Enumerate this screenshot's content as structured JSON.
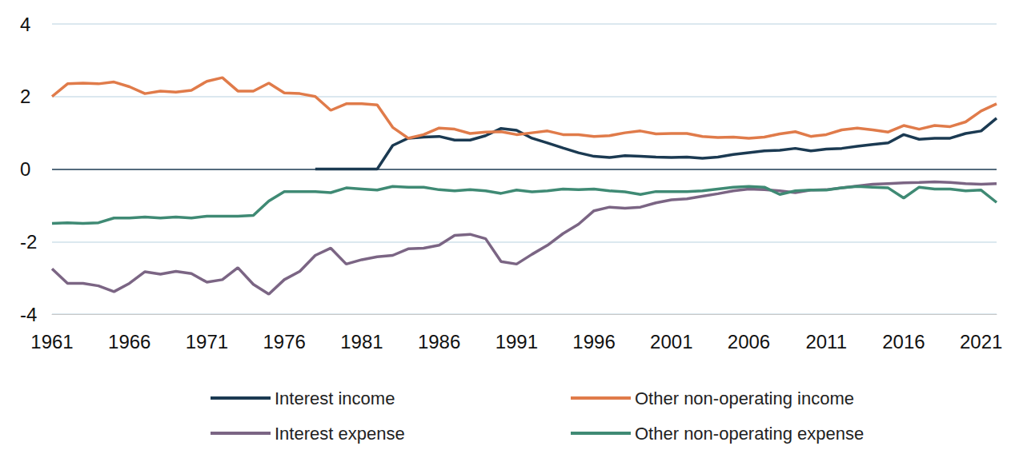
{
  "chart_data": {
    "type": "line",
    "x": [
      1961,
      1962,
      1963,
      1964,
      1965,
      1966,
      1967,
      1968,
      1969,
      1970,
      1971,
      1972,
      1973,
      1974,
      1975,
      1976,
      1977,
      1978,
      1979,
      1980,
      1981,
      1982,
      1983,
      1984,
      1985,
      1986,
      1987,
      1988,
      1989,
      1990,
      1991,
      1992,
      1993,
      1994,
      1995,
      1996,
      1997,
      1998,
      1999,
      2000,
      2001,
      2002,
      2003,
      2004,
      2005,
      2006,
      2007,
      2008,
      2009,
      2010,
      2011,
      2012,
      2013,
      2014,
      2015,
      2016,
      2017,
      2018,
      2019,
      2020,
      2021,
      2022
    ],
    "xlim": [
      1961,
      2022
    ],
    "xticks": [
      1961,
      1966,
      1971,
      1976,
      1981,
      1986,
      1991,
      1996,
      2001,
      2006,
      2011,
      2016,
      2021
    ],
    "ylim": [
      -4,
      4
    ],
    "yticks": [
      -4,
      -2,
      0,
      2,
      4
    ],
    "grid": true,
    "legend": "bottom",
    "series": [
      {
        "name": "Interest income",
        "color": "#1b3a52",
        "values": [
          null,
          null,
          null,
          null,
          null,
          null,
          null,
          null,
          null,
          null,
          null,
          null,
          null,
          null,
          null,
          null,
          null,
          0,
          0,
          0,
          0,
          0,
          0.65,
          0.85,
          0.88,
          0.9,
          0.8,
          0.8,
          0.92,
          1.12,
          1.07,
          0.85,
          0.72,
          0.58,
          0.45,
          0.35,
          0.32,
          0.37,
          0.35,
          0.33,
          0.32,
          0.33,
          0.3,
          0.33,
          0.4,
          0.45,
          0.5,
          0.52,
          0.57,
          0.5,
          0.55,
          0.57,
          0.63,
          0.68,
          0.72,
          0.95,
          0.82,
          0.85,
          0.85,
          0.98,
          1.05,
          1.4
        ]
      },
      {
        "name": "Other non-operating income",
        "color": "#e07b4a",
        "values": [
          2.0,
          2.35,
          2.37,
          2.35,
          2.4,
          2.27,
          2.08,
          2.15,
          2.12,
          2.17,
          2.42,
          2.52,
          2.15,
          2.15,
          2.37,
          2.1,
          2.08,
          2.0,
          1.62,
          1.8,
          1.8,
          1.77,
          1.15,
          0.85,
          0.95,
          1.13,
          1.1,
          0.98,
          1.02,
          1.03,
          0.95,
          1.0,
          1.05,
          0.95,
          0.95,
          0.9,
          0.92,
          1.0,
          1.05,
          0.97,
          0.98,
          0.98,
          0.9,
          0.87,
          0.88,
          0.85,
          0.88,
          0.97,
          1.03,
          0.9,
          0.95,
          1.08,
          1.13,
          1.08,
          1.02,
          1.2,
          1.1,
          1.2,
          1.17,
          1.3,
          1.6,
          1.8
        ]
      },
      {
        "name": "Interest expense",
        "color": "#7b6584",
        "values": [
          -2.75,
          -3.15,
          -3.15,
          -3.22,
          -3.38,
          -3.15,
          -2.83,
          -2.9,
          -2.82,
          -2.88,
          -3.12,
          -3.05,
          -2.72,
          -3.18,
          -3.45,
          -3.05,
          -2.82,
          -2.38,
          -2.18,
          -2.62,
          -2.5,
          -2.42,
          -2.38,
          -2.2,
          -2.18,
          -2.1,
          -1.83,
          -1.8,
          -1.92,
          -2.55,
          -2.62,
          -2.35,
          -2.1,
          -1.78,
          -1.52,
          -1.15,
          -1.05,
          -1.08,
          -1.05,
          -0.93,
          -0.85,
          -0.82,
          -0.75,
          -0.68,
          -0.6,
          -0.55,
          -0.57,
          -0.6,
          -0.65,
          -0.58,
          -0.57,
          -0.52,
          -0.47,
          -0.42,
          -0.4,
          -0.38,
          -0.37,
          -0.35,
          -0.37,
          -0.4,
          -0.42,
          -0.4
        ]
      },
      {
        "name": "Other non-operating expense",
        "color": "#3f8a74",
        "values": [
          -1.5,
          -1.48,
          -1.5,
          -1.48,
          -1.35,
          -1.35,
          -1.32,
          -1.35,
          -1.32,
          -1.35,
          -1.3,
          -1.3,
          -1.3,
          -1.28,
          -0.88,
          -0.62,
          -0.62,
          -0.62,
          -0.65,
          -0.52,
          -0.55,
          -0.58,
          -0.48,
          -0.5,
          -0.5,
          -0.57,
          -0.6,
          -0.57,
          -0.6,
          -0.67,
          -0.58,
          -0.63,
          -0.6,
          -0.55,
          -0.57,
          -0.55,
          -0.6,
          -0.63,
          -0.7,
          -0.62,
          -0.62,
          -0.62,
          -0.6,
          -0.55,
          -0.5,
          -0.48,
          -0.5,
          -0.7,
          -0.6,
          -0.58,
          -0.58,
          -0.52,
          -0.48,
          -0.5,
          -0.52,
          -0.8,
          -0.5,
          -0.55,
          -0.55,
          -0.6,
          -0.58,
          -0.92
        ]
      }
    ]
  }
}
